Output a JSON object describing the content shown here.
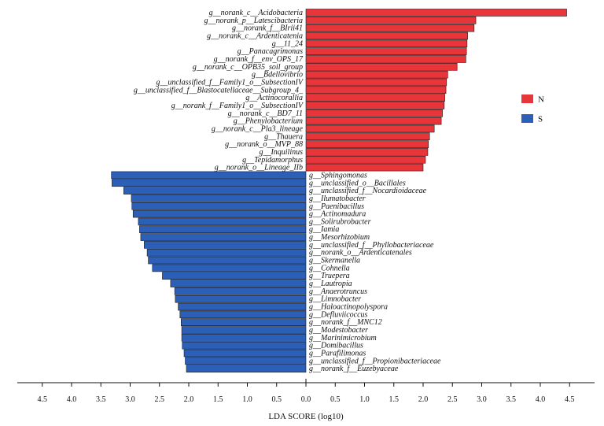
{
  "chart_data": {
    "type": "bar",
    "orientation": "horizontal-diverging",
    "title": "",
    "xlabel": "LDA SCORE (log10)",
    "xlim": [
      -5,
      5
    ],
    "xticks": [
      "4.5",
      "4.0",
      "3.5",
      "3.0",
      "2.5",
      "2.0",
      "1.5",
      "1.0",
      "0.5",
      "0.0",
      "0.5",
      "1.0",
      "1.5",
      "2.0",
      "2.5",
      "3.0",
      "3.5",
      "4.0",
      "4.5"
    ],
    "legend": {
      "position": "right",
      "entries": [
        {
          "name": "N",
          "color": "#e8353a"
        },
        {
          "name": "S",
          "color": "#2b5fb8"
        }
      ]
    },
    "series": [
      {
        "name": "N",
        "color": "#e8353a",
        "direction": "right",
        "categories": [
          "g__norank_c__Acidobacteria",
          "g__norank_p__Latescibacteria",
          "g__norank_f__BIrii41",
          "g__norank_c__Ardenticatenia",
          "g__11_24",
          "g__Panacagrimonas",
          "g__norank_f__env_OPS_17",
          "g__norank_c__OPB35_soil_group",
          "g__Bdellovibrio",
          "g__unclassified_f__Family1_o__SubsectionIV",
          "g__unclassified_f__Blastocatellaceae__Subgroup_4_",
          "g__Actinocorallia",
          "g__norank_f__Family1_o__SubsectionIV",
          "g__norank_c__BD7_11",
          "g__Phenylobacterium",
          "g__norank_c__Pla3_lineage",
          "g__Thauera",
          "g__norank_o__MVP_88",
          "g__Inquilinus",
          "g__Tepidamorphus",
          "g__norank_o__Lineage_IIb"
        ],
        "values": [
          4.45,
          2.9,
          2.87,
          2.76,
          2.75,
          2.74,
          2.73,
          2.58,
          2.42,
          2.4,
          2.39,
          2.37,
          2.36,
          2.33,
          2.31,
          2.19,
          2.11,
          2.09,
          2.08,
          2.04,
          2.0
        ]
      },
      {
        "name": "S",
        "color": "#2b5fb8",
        "direction": "left",
        "categories": [
          "g__Sphingomonas",
          "g__unclassified_o__Bacillales",
          "g__unclassified_f__Nocardioidaceae",
          "g__Ilumatobacter",
          "g__Paenibacillus",
          "g__Actinomadura",
          "g__Solirubrobacter",
          "g__Iamia",
          "g__Mesorhizobium",
          "g__unclassified_f__Phyllobacteriaceae",
          "g__norank_o__Ardenticatenales",
          "g__Skermanella",
          "g__Cohnella",
          "g__Truepera",
          "g__Lautropia",
          "g__Anaerotruncus",
          "g__Limnobacter",
          "g__Haloactinopolyspora",
          "g__Defluviicoccus",
          "g__norank_f__MNC12",
          "g__Modestobacter",
          "g__Marinimicrobium",
          "g__Domibacillus",
          "g__Parafilimonas",
          "g__unclassified_f__Propionibacteriaceae",
          "g__norank_f__Euzebyaceae"
        ],
        "values": [
          3.32,
          3.31,
          3.11,
          2.98,
          2.97,
          2.95,
          2.86,
          2.84,
          2.82,
          2.76,
          2.71,
          2.69,
          2.62,
          2.45,
          2.31,
          2.24,
          2.23,
          2.18,
          2.15,
          2.13,
          2.12,
          2.12,
          2.11,
          2.08,
          2.06,
          2.04
        ]
      }
    ]
  }
}
